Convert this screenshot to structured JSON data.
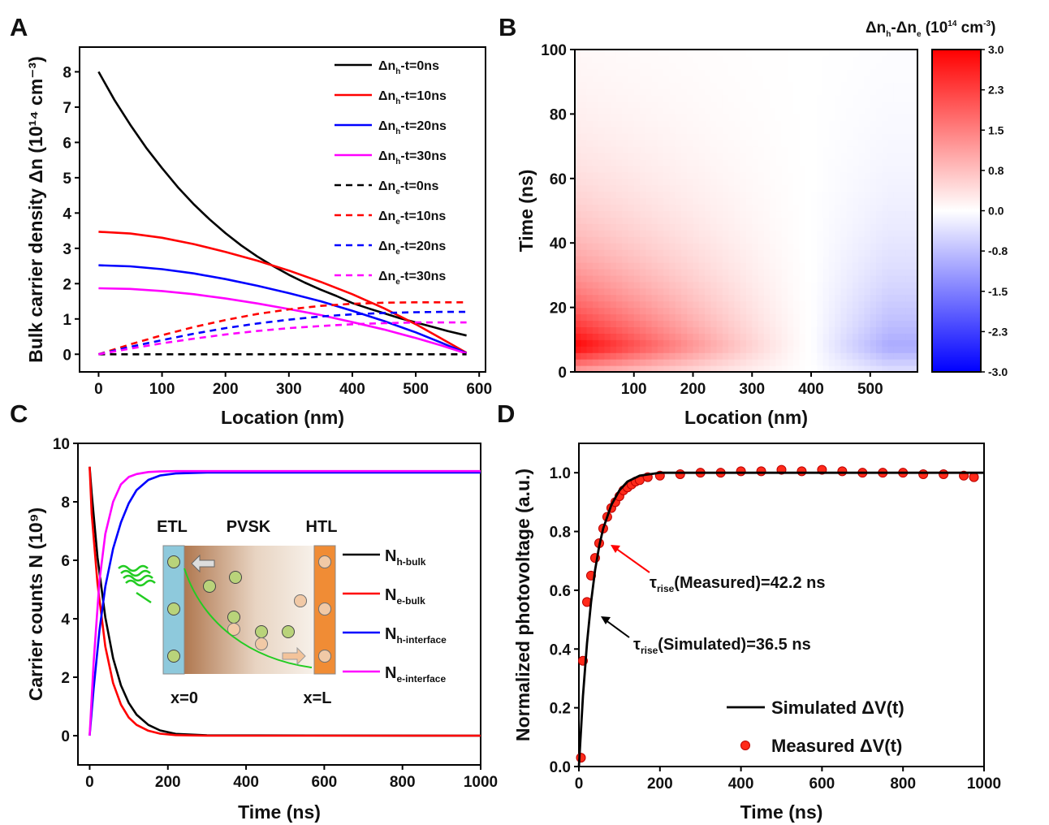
{
  "chart_data": [
    {
      "panel": "A",
      "type": "line",
      "xlabel": "Location (nm)",
      "ylabel": "Bulk carrier density Δn (10¹⁴ cm⁻³)",
      "xlim": [
        -30,
        610
      ],
      "ylim": [
        -0.5,
        8.7
      ],
      "xticks": [
        0,
        100,
        200,
        300,
        400,
        500,
        600
      ],
      "yticks": [
        0,
        1,
        2,
        3,
        4,
        5,
        6,
        7,
        8
      ],
      "legend_position": "top-right",
      "series": [
        {
          "name": "Δnh-t=0ns",
          "base": "Δn",
          "sub": "h",
          "rest": "-t=0ns",
          "color": "#000000",
          "dash": false,
          "x": [
            0,
            25,
            50,
            75,
            100,
            125,
            150,
            175,
            200,
            225,
            250,
            275,
            300,
            325,
            350,
            375,
            400,
            425,
            450,
            475,
            500,
            525,
            550,
            580
          ],
          "y": [
            8.0,
            7.2,
            6.5,
            5.85,
            5.27,
            4.73,
            4.25,
            3.82,
            3.43,
            3.08,
            2.77,
            2.5,
            2.25,
            2.03,
            1.83,
            1.65,
            1.45,
            1.3,
            1.16,
            1.02,
            0.9,
            0.78,
            0.66,
            0.53
          ]
        },
        {
          "name": "Δnh-t=10ns",
          "base": "Δn",
          "sub": "h",
          "rest": "-t=10ns",
          "color": "#ff0000",
          "dash": false,
          "x": [
            0,
            50,
            100,
            150,
            200,
            250,
            300,
            350,
            400,
            450,
            500,
            540,
            580
          ],
          "y": [
            3.47,
            3.42,
            3.3,
            3.12,
            2.9,
            2.65,
            2.37,
            2.05,
            1.7,
            1.3,
            0.85,
            0.45,
            0.04
          ]
        },
        {
          "name": "Δnh-t=20ns",
          "base": "Δn",
          "sub": "h",
          "rest": "-t=20ns",
          "color": "#0000ff",
          "dash": false,
          "x": [
            0,
            50,
            100,
            150,
            200,
            250,
            300,
            350,
            400,
            450,
            500,
            540,
            580
          ],
          "y": [
            2.52,
            2.49,
            2.41,
            2.29,
            2.13,
            1.94,
            1.73,
            1.5,
            1.23,
            0.94,
            0.62,
            0.33,
            0.03
          ]
        },
        {
          "name": "Δnh-t=30ns",
          "base": "Δn",
          "sub": "h",
          "rest": "-t=30ns",
          "color": "#ff00ff",
          "dash": false,
          "x": [
            0,
            50,
            100,
            150,
            200,
            250,
            300,
            350,
            400,
            450,
            500,
            540,
            580
          ],
          "y": [
            1.87,
            1.85,
            1.79,
            1.7,
            1.58,
            1.44,
            1.28,
            1.11,
            0.91,
            0.7,
            0.46,
            0.25,
            0.02
          ]
        },
        {
          "name": "Δne-t=0ns",
          "base": "Δn",
          "sub": "e",
          "rest": "-t=0ns",
          "color": "#000000",
          "dash": true,
          "x": [
            0,
            580
          ],
          "y": [
            0,
            0
          ]
        },
        {
          "name": "Δne-t=10ns",
          "base": "Δn",
          "sub": "e",
          "rest": "-t=10ns",
          "color": "#ff0000",
          "dash": true,
          "x": [
            0,
            50,
            100,
            150,
            200,
            250,
            300,
            350,
            400,
            450,
            500,
            540,
            580
          ],
          "y": [
            0,
            0.28,
            0.54,
            0.77,
            0.97,
            1.14,
            1.27,
            1.37,
            1.43,
            1.46,
            1.47,
            1.47,
            1.47
          ]
        },
        {
          "name": "Δne-t=20ns",
          "base": "Δn",
          "sub": "e",
          "rest": "-t=20ns",
          "color": "#0000ff",
          "dash": true,
          "x": [
            0,
            50,
            100,
            150,
            200,
            250,
            300,
            350,
            400,
            450,
            500,
            540,
            580
          ],
          "y": [
            0,
            0.21,
            0.4,
            0.58,
            0.74,
            0.87,
            0.98,
            1.07,
            1.13,
            1.17,
            1.19,
            1.2,
            1.2
          ]
        },
        {
          "name": "Δne-t=30ns",
          "base": "Δn",
          "sub": "e",
          "rest": "-t=30ns",
          "color": "#ff00ff",
          "dash": true,
          "x": [
            0,
            50,
            100,
            150,
            200,
            250,
            300,
            350,
            400,
            450,
            500,
            540,
            580
          ],
          "y": [
            0,
            0.16,
            0.31,
            0.44,
            0.56,
            0.66,
            0.74,
            0.8,
            0.85,
            0.88,
            0.9,
            0.9,
            0.9
          ]
        }
      ]
    },
    {
      "panel": "B",
      "type": "heatmap",
      "xlabel": "Location (nm)",
      "ylabel": "Time (ns)",
      "xlim": [
        0,
        580
      ],
      "ylim": [
        0,
        100
      ],
      "xticks": [
        100,
        200,
        300,
        400,
        500
      ],
      "yticks": [
        0,
        20,
        40,
        60,
        80,
        100
      ],
      "colorbar": {
        "title": "Δnh-Δne (1014 cm-3)",
        "range": [
          -3.0,
          3.0
        ],
        "ticks": [
          "3.0",
          "2.3",
          "1.5",
          "0.8",
          "0.0",
          "-0.8",
          "-1.5",
          "-2.3",
          "-3.0"
        ],
        "colors": [
          "#0000ff",
          "#ffffff",
          "#ff0000"
        ]
      },
      "value_model": "Δnh-Δne positive (red) for x<400 nm, maximum ~3.0 near x=0 and t≈8 ns; negative (blue) for x>400 nm, minimum ~-1.0; fading toward 0 as time increases"
    },
    {
      "panel": "C",
      "type": "line",
      "xlabel": "Time (ns)",
      "ylabel": "Carrier counts N (10⁹)",
      "xlim": [
        -30,
        1000
      ],
      "ylim": [
        -1,
        10
      ],
      "xticks": [
        0,
        200,
        400,
        600,
        800,
        1000
      ],
      "yticks": [
        0,
        2,
        4,
        6,
        8,
        10
      ],
      "legend_position": "right",
      "series": [
        {
          "name": "Nh-bulk",
          "base": "N",
          "sub": "h-bulk",
          "color": "#000000",
          "x": [
            0,
            5,
            20,
            40,
            60,
            80,
            100,
            120,
            150,
            180,
            220,
            300,
            1000
          ],
          "y": [
            9.2,
            8.3,
            6.1,
            4.05,
            2.65,
            1.72,
            1.12,
            0.72,
            0.37,
            0.18,
            0.06,
            0.01,
            0
          ]
        },
        {
          "name": "Ne-bulk",
          "base": "N",
          "sub": "e-bulk",
          "color": "#ff0000",
          "x": [
            0,
            5,
            20,
            40,
            60,
            80,
            100,
            120,
            150,
            180,
            220,
            300,
            1000
          ],
          "y": [
            9.2,
            7.6,
            5.2,
            3.05,
            1.8,
            1.06,
            0.62,
            0.37,
            0.17,
            0.07,
            0.02,
            0,
            0
          ]
        },
        {
          "name": "Nh-interface",
          "base": "N",
          "sub": "h-interface",
          "color": "#0000ff",
          "x": [
            0,
            10,
            25,
            40,
            60,
            80,
            100,
            120,
            150,
            180,
            220,
            300,
            1000
          ],
          "y": [
            0,
            1.6,
            3.6,
            5.1,
            6.4,
            7.3,
            7.95,
            8.4,
            8.75,
            8.9,
            8.97,
            9.0,
            9.0
          ]
        },
        {
          "name": "Ne-interface",
          "base": "N",
          "sub": "e-interface",
          "color": "#ff00ff",
          "x": [
            0,
            10,
            25,
            40,
            60,
            80,
            100,
            120,
            150,
            180,
            220,
            300,
            1000
          ],
          "y": [
            0,
            2.5,
            5.3,
            6.9,
            8.0,
            8.6,
            8.85,
            8.95,
            9.02,
            9.04,
            9.05,
            9.05,
            9.05
          ]
        }
      ],
      "inset": {
        "labels": [
          "ETL",
          "PVSK",
          "HTL"
        ],
        "bottom_labels": [
          "x=0",
          "x=L"
        ]
      }
    },
    {
      "panel": "D",
      "type": "scatter",
      "xlabel": "Time (ns)",
      "ylabel": "Normalized photovoltage (a.u.)",
      "xlim": [
        0,
        1000
      ],
      "ylim": [
        0,
        1.1
      ],
      "xticks": [
        0,
        200,
        400,
        600,
        800,
        1000
      ],
      "yticks": [
        "0.0",
        "0.2",
        "0.4",
        "0.6",
        "0.8",
        "1.0"
      ],
      "legend_position": "bottom-right",
      "series": [
        {
          "name": "Simulated ΔV(t)",
          "kind": "line",
          "color": "#000000",
          "x": [
            0,
            10,
            20,
            30,
            40,
            50,
            60,
            80,
            100,
            120,
            150,
            200,
            300,
            1000
          ],
          "y": [
            0,
            0.24,
            0.42,
            0.56,
            0.67,
            0.75,
            0.81,
            0.89,
            0.94,
            0.97,
            0.99,
            1.0,
            1.0,
            1.0
          ]
        },
        {
          "name": "Measured ΔV(t)",
          "kind": "markers",
          "color": "#ff0000",
          "x": [
            5,
            10,
            20,
            30,
            40,
            50,
            60,
            70,
            80,
            90,
            100,
            110,
            120,
            130,
            140,
            150,
            170,
            200,
            250,
            300,
            350,
            400,
            450,
            500,
            550,
            600,
            650,
            700,
            750,
            800,
            850,
            900,
            950,
            975
          ],
          "y": [
            0.03,
            0.36,
            0.56,
            0.65,
            0.71,
            0.76,
            0.81,
            0.85,
            0.88,
            0.9,
            0.92,
            0.94,
            0.95,
            0.96,
            0.97,
            0.975,
            0.985,
            0.99,
            0.995,
            1.0,
            1.0,
            1.005,
            1.005,
            1.01,
            1.005,
            1.01,
            1.005,
            1.0,
            1.0,
            1.0,
            0.995,
            0.995,
            0.99,
            0.985
          ]
        }
      ],
      "annotations": [
        {
          "sym": "τ",
          "sub": "rise",
          "text": "(Measured)=42.2 ns",
          "color": "#ff0000"
        },
        {
          "sym": "τ",
          "sub": "rise",
          "text": "(Simulated)=36.5 ns",
          "color": "#000000"
        }
      ]
    }
  ],
  "panels": [
    "A",
    "B",
    "C",
    "D"
  ]
}
